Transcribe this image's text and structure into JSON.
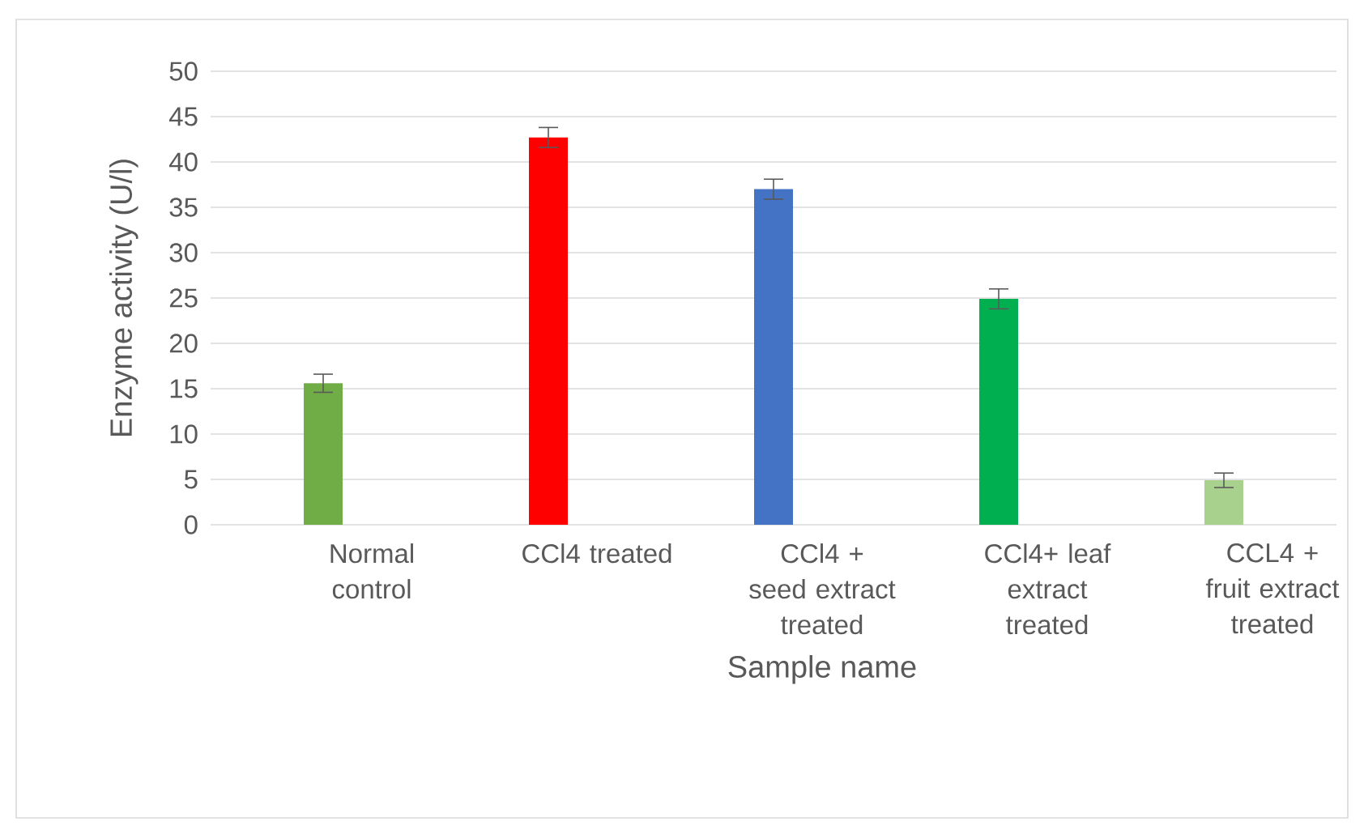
{
  "chart_data": {
    "type": "bar",
    "xlabel": "Sample name",
    "ylabel": "Enzyme activity (U/l)",
    "categories": [
      "Normal control",
      "CCl4 treated",
      "CCl4 + seed extract treated",
      "CCl4+ leaf extract treated",
      "CCL4 + fruit extract treated"
    ],
    "values": [
      15.6,
      42.7,
      37.0,
      24.9,
      4.9
    ],
    "errors": [
      1.0,
      1.1,
      1.1,
      1.1,
      0.8
    ],
    "colors": [
      "#70ad47",
      "#ff0000",
      "#4472c4",
      "#00b050",
      "#a9d18e"
    ],
    "ylim": [
      0,
      50
    ],
    "yticks": [
      0,
      5,
      10,
      15,
      20,
      25,
      30,
      35,
      40,
      45,
      50
    ],
    "grid": "y"
  }
}
